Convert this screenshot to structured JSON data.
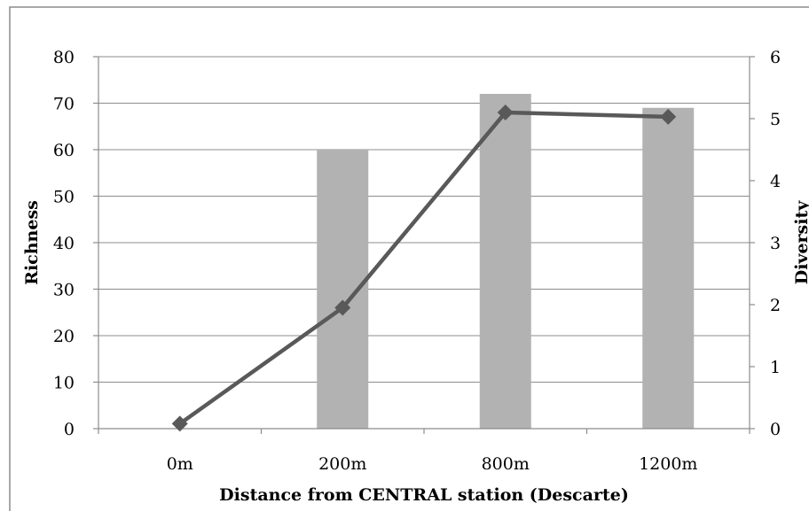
{
  "chart_data": {
    "type": "bar+line",
    "categories": [
      "0m",
      "200m",
      "800m",
      "1200m"
    ],
    "xlabel": "Distance from CENTRAL station (Descarte)",
    "ylabel_left": "Richness",
    "ylabel_right": "Diversity",
    "ylim_left": [
      0,
      80
    ],
    "ylim_right": [
      0,
      6
    ],
    "yticks_left": [
      "0",
      "10",
      "20",
      "30",
      "40",
      "50",
      "60",
      "70",
      "80"
    ],
    "yticks_right": [
      "0",
      "1",
      "2",
      "3",
      "4",
      "5",
      "6"
    ],
    "grid": "horizontal",
    "legend": "none",
    "series": [
      {
        "type": "bar",
        "axis": "left",
        "color": "#b2b2b2",
        "values": [
          0,
          60,
          72,
          69
        ]
      },
      {
        "type": "line",
        "axis": "right",
        "marker": "diamond",
        "color": "#595959",
        "values": [
          0.08,
          1.95,
          5.1,
          5.03
        ]
      }
    ]
  }
}
